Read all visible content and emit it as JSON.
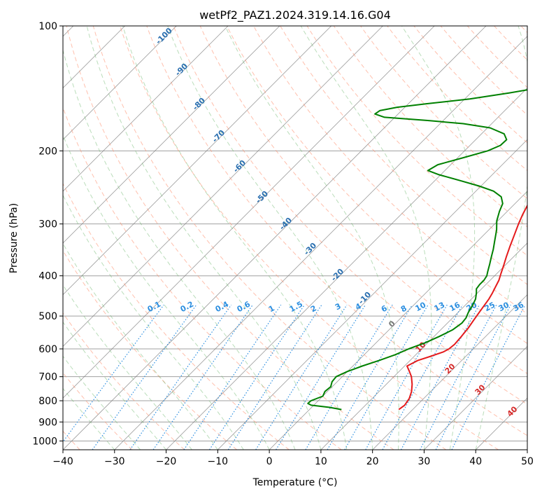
{
  "chart_data": {
    "type": "line",
    "subtype": "skew-t log-p diagram",
    "title": "wetPf2_PAZ1.2024.319.14.16.G04",
    "xlabel": "Temperature (°C)",
    "ylabel": "Pressure (hPa)",
    "xlim": [
      -40,
      50
    ],
    "ylim": [
      1050,
      100
    ],
    "y_scale": "log",
    "grid": true,
    "x_ticks": [
      -40,
      -30,
      -20,
      -10,
      0,
      10,
      20,
      30,
      40,
      50
    ],
    "y_ticks": [
      100,
      200,
      300,
      400,
      500,
      600,
      700,
      800,
      900,
      1000
    ],
    "series": [
      {
        "color": "#e41a1c",
        "points": [
          [
            840,
            17.3
          ],
          [
            820,
            17.6
          ],
          [
            790,
            17.2
          ],
          [
            760,
            16.3
          ],
          [
            730,
            15.0
          ],
          [
            700,
            13.4
          ],
          [
            680,
            12.0
          ],
          [
            660,
            10.5
          ],
          [
            640,
            11.5
          ],
          [
            625,
            13.2
          ],
          [
            610,
            14.8
          ],
          [
            600,
            15.3
          ],
          [
            585,
            15.5
          ],
          [
            560,
            15.3
          ],
          [
            535,
            15.0
          ],
          [
            510,
            14.5
          ],
          [
            490,
            14.1
          ],
          [
            470,
            13.7
          ],
          [
            455,
            13.4
          ],
          [
            440,
            12.9
          ],
          [
            425,
            12.3
          ],
          [
            410,
            11.7
          ],
          [
            395,
            10.8
          ],
          [
            380,
            9.9
          ],
          [
            360,
            8.6
          ],
          [
            340,
            7.3
          ],
          [
            320,
            6.0
          ],
          [
            300,
            4.6
          ],
          [
            285,
            3.6
          ],
          [
            270,
            2.7
          ],
          [
            258,
            1.8
          ],
          [
            248,
            1.1
          ],
          [
            240,
            1.0
          ],
          [
            230,
            2.1
          ],
          [
            220,
            3.5
          ],
          [
            212,
            4.9
          ],
          [
            200,
            5.1
          ],
          [
            190,
            5.8
          ],
          [
            178,
            7.5
          ],
          [
            168,
            8.4
          ],
          [
            160,
            8.7
          ],
          [
            150,
            9.0
          ],
          [
            140,
            9.3
          ],
          [
            130,
            9.6
          ],
          [
            120,
            9.9
          ],
          [
            110,
            10.3
          ],
          [
            100,
            10.6
          ]
        ]
      },
      {
        "color": "#008000",
        "points": [
          [
            840,
            6.2
          ],
          [
            830,
            3.5
          ],
          [
            820,
            -0.5
          ],
          [
            812,
            -1.5
          ],
          [
            800,
            -1.4
          ],
          [
            780,
            0.0
          ],
          [
            760,
            -0.5
          ],
          [
            740,
            -0.3
          ],
          [
            720,
            -1.0
          ],
          [
            700,
            -1.2
          ],
          [
            680,
            0.0
          ],
          [
            660,
            1.8
          ],
          [
            640,
            4.0
          ],
          [
            620,
            6.0
          ],
          [
            600,
            7.5
          ],
          [
            580,
            9.5
          ],
          [
            560,
            11.0
          ],
          [
            540,
            12.3
          ],
          [
            520,
            12.8
          ],
          [
            505,
            12.6
          ],
          [
            490,
            12.0
          ],
          [
            470,
            11.4
          ],
          [
            455,
            10.8
          ],
          [
            440,
            9.8
          ],
          [
            430,
            9.0
          ],
          [
            420,
            8.8
          ],
          [
            410,
            8.8
          ],
          [
            400,
            8.5
          ],
          [
            390,
            7.8
          ],
          [
            375,
            6.8
          ],
          [
            360,
            5.7
          ],
          [
            345,
            4.6
          ],
          [
            330,
            3.3
          ],
          [
            310,
            1.5
          ],
          [
            295,
            -0.2
          ],
          [
            280,
            -1.5
          ],
          [
            268,
            -2.4
          ],
          [
            258,
            -4.0
          ],
          [
            250,
            -6.6
          ],
          [
            243,
            -10.4
          ],
          [
            236,
            -15.0
          ],
          [
            228,
            -20.5
          ],
          [
            223,
            -23.3
          ],
          [
            216,
            -22.5
          ],
          [
            208,
            -19.0
          ],
          [
            200,
            -15.5
          ],
          [
            194,
            -14.1
          ],
          [
            188,
            -14.0
          ],
          [
            182,
            -15.6
          ],
          [
            176,
            -19.5
          ],
          [
            172,
            -25.5
          ],
          [
            169,
            -33.0
          ],
          [
            166,
            -42.0
          ],
          [
            163,
            -44.5
          ],
          [
            160,
            -44.2
          ],
          [
            157,
            -41.5
          ],
          [
            154,
            -36.5
          ],
          [
            150,
            -29.0
          ],
          [
            145,
            -22.5
          ],
          [
            140,
            -16.5
          ],
          [
            133,
            -10.0
          ],
          [
            125,
            -4.5
          ],
          [
            118,
            -0.3
          ],
          [
            110,
            1.0
          ],
          [
            105,
            2.0
          ],
          [
            100,
            3.0
          ]
        ]
      }
    ],
    "dry_adiabat_labels": [
      "0",
      "10",
      "20",
      "30",
      "40"
    ],
    "moist_adiabat_labels": [
      "-100",
      "-90",
      "-80",
      "-70",
      "-60",
      "-50",
      "-40",
      "-30",
      "-20",
      "-10"
    ],
    "mixing_ratio_labels": [
      "0.1",
      "0.2",
      "0.4",
      "0.6",
      "1",
      "1.5",
      "2",
      "3",
      "4",
      "6",
      "8",
      "10",
      "13",
      "16",
      "20",
      "25",
      "30",
      "36"
    ],
    "colors": {
      "isotherm": "#7a7a7a",
      "isobar": "#a0a0a0",
      "dry_adiabat": "#ff8c69",
      "moist_adiabat": "#66b366",
      "mixing_ratio": "#2d8fe0",
      "reference": "#d2b48c"
    }
  }
}
